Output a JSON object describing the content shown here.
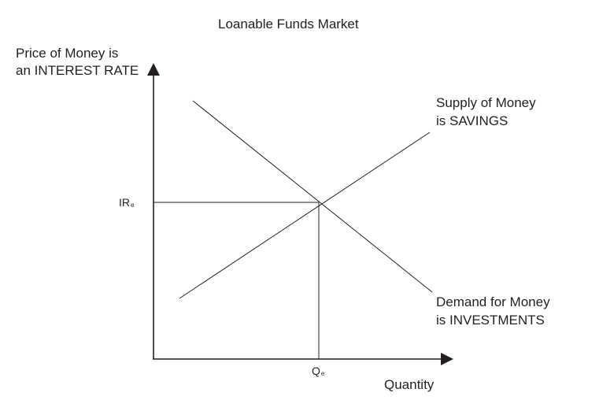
{
  "title": "Loanable Funds Market",
  "y_axis_label": [
    "Price of Money is",
    "an INTEREST RATE"
  ],
  "x_axis_label": "Quantity",
  "supply_label": [
    "Supply of Money",
    "is SAVINGS"
  ],
  "demand_label": [
    "Demand for Money",
    "is INVESTMENTS"
  ],
  "equilibrium_rate": {
    "base": "IR",
    "sub": "e"
  },
  "equilibrium_quantity": {
    "base": "Q",
    "sub": "e"
  },
  "colors": {
    "line": "#231f20",
    "background": "#ffffff"
  }
}
